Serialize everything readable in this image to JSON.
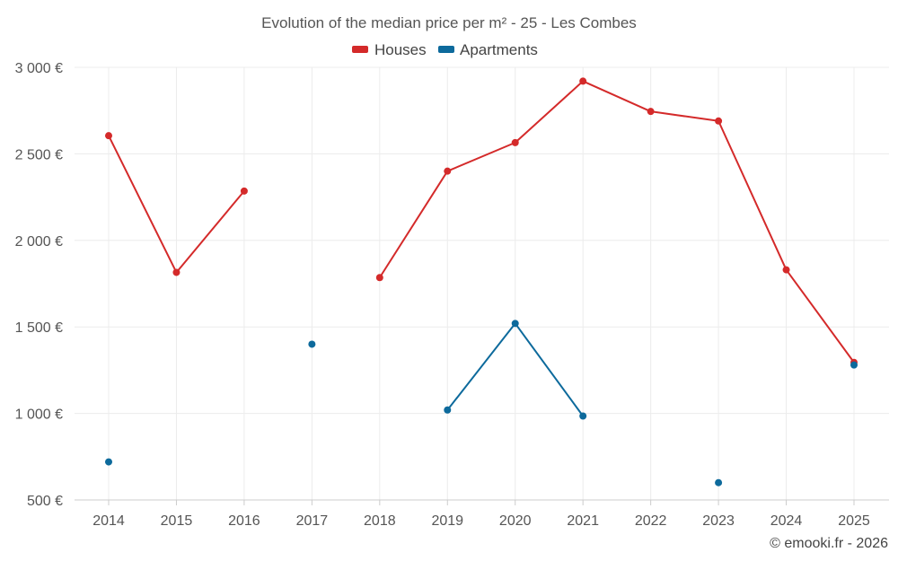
{
  "chart_data": {
    "type": "line",
    "title": "Evolution of the median price per m² - 25 - Les Combes",
    "categories": [
      "2014",
      "2015",
      "2016",
      "2017",
      "2018",
      "2019",
      "2020",
      "2021",
      "2022",
      "2023",
      "2024",
      "2025"
    ],
    "ylim": [
      500,
      3000
    ],
    "y_ticks": [
      500,
      1000,
      1500,
      2000,
      2500,
      3000
    ],
    "y_tick_labels": [
      "500 €",
      "1 000 €",
      "1 500 €",
      "2 000 €",
      "2 500 €",
      "3 000 €"
    ],
    "grid": true,
    "legend_position": "top-center",
    "series": [
      {
        "name": "Houses",
        "color": "#d42a2a",
        "values": [
          2605,
          1815,
          2285,
          null,
          1785,
          2400,
          2565,
          2920,
          2745,
          2690,
          1830,
          1295
        ]
      },
      {
        "name": "Apartments",
        "color": "#0d6a9c",
        "values": [
          720,
          null,
          null,
          1400,
          null,
          1020,
          1520,
          985,
          null,
          600,
          null,
          1280
        ]
      }
    ]
  },
  "credit": "© emooki.fr - 2026"
}
